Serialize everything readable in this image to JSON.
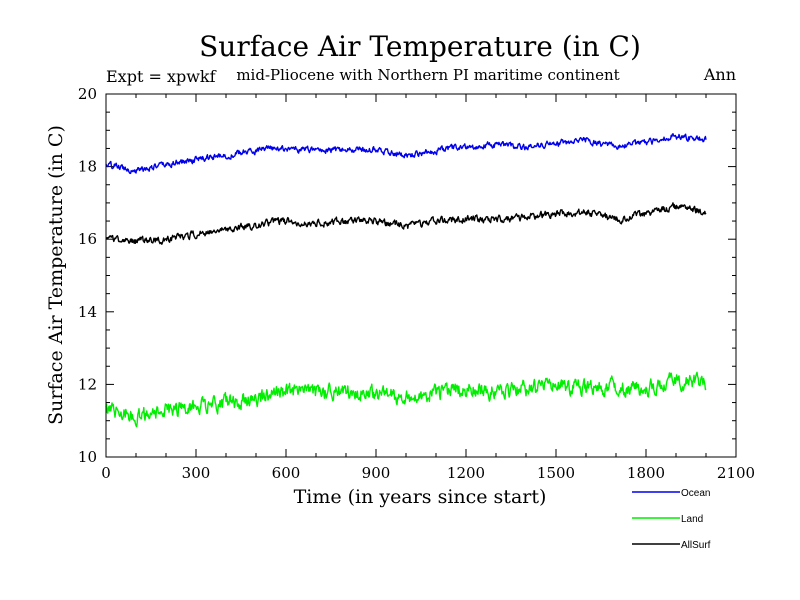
{
  "chart_data": {
    "type": "line",
    "title": "Surface Air Temperature (in C)",
    "expt_label": "Expt = xpwkf",
    "subtitle": "mid-Pliocene with Northern PI maritime continent",
    "season": "Ann",
    "xlabel": "Time (in years since start)",
    "ylabel": "Surface Air Temperature (in C)",
    "xlim": [
      0,
      2100
    ],
    "ylim": [
      10,
      20
    ],
    "x_ticks": [
      "0",
      "300",
      "600",
      "900",
      "1200",
      "1500",
      "1800",
      "2100"
    ],
    "y_ticks": [
      "10",
      "12",
      "14",
      "16",
      "18",
      "20"
    ],
    "legend_position": "bottom-right",
    "series": [
      {
        "name": "Ocean",
        "color": "#0000ee",
        "x": [
          0,
          100,
          200,
          300,
          400,
          500,
          600,
          700,
          800,
          900,
          1000,
          1100,
          1200,
          1300,
          1400,
          1500,
          1600,
          1700,
          1800,
          1900,
          2000
        ],
        "values": [
          18.05,
          17.9,
          18.05,
          18.2,
          18.3,
          18.45,
          18.5,
          18.45,
          18.45,
          18.5,
          18.3,
          18.45,
          18.55,
          18.6,
          18.55,
          18.65,
          18.7,
          18.55,
          18.65,
          18.85,
          18.75
        ]
      },
      {
        "name": "Land",
        "color": "#00ee00",
        "x": [
          0,
          100,
          200,
          300,
          400,
          500,
          600,
          700,
          800,
          900,
          1000,
          1100,
          1200,
          1300,
          1400,
          1500,
          1600,
          1700,
          1800,
          1900,
          2000
        ],
        "values": [
          11.3,
          11.15,
          11.25,
          11.4,
          11.5,
          11.6,
          11.8,
          11.75,
          11.8,
          11.75,
          11.6,
          11.75,
          11.85,
          11.8,
          11.9,
          11.95,
          11.9,
          11.95,
          11.85,
          12.1,
          12.05
        ]
      },
      {
        "name": "AllSurf",
        "color": "#000000",
        "x": [
          0,
          100,
          200,
          300,
          400,
          500,
          600,
          700,
          800,
          900,
          1000,
          1100,
          1200,
          1300,
          1400,
          1500,
          1600,
          1700,
          1800,
          1900,
          2000
        ],
        "values": [
          16.0,
          15.95,
          16.0,
          16.15,
          16.25,
          16.4,
          16.5,
          16.45,
          16.5,
          16.5,
          16.35,
          16.5,
          16.55,
          16.55,
          16.6,
          16.7,
          16.75,
          16.55,
          16.7,
          16.9,
          16.75
        ]
      }
    ]
  }
}
